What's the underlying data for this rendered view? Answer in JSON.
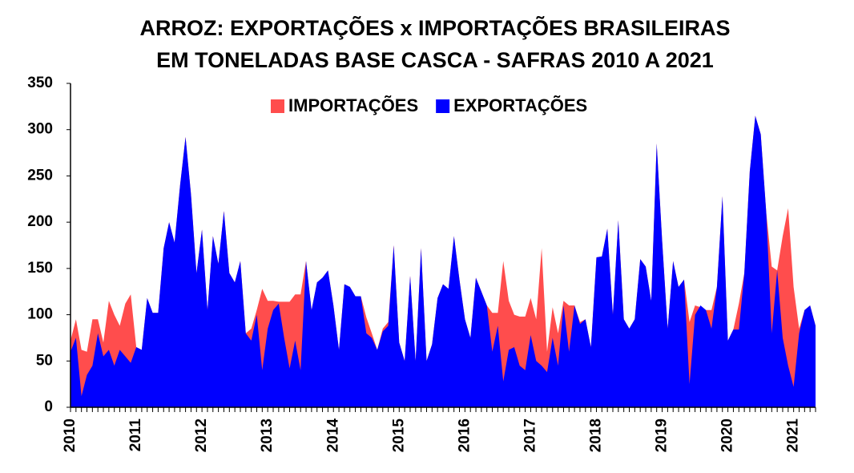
{
  "chart_data": {
    "type": "area",
    "title": [
      "ARROZ: EXPORTAÇÕES x IMPORTAÇÕES BRASILEIRAS",
      "EM TONELADAS BASE CASCA - SAFRAS 2010 A 2021"
    ],
    "categories": [
      "2010",
      null,
      null,
      null,
      null,
      null,
      null,
      null,
      null,
      null,
      null,
      null,
      "2011",
      null,
      null,
      null,
      null,
      null,
      null,
      null,
      null,
      null,
      null,
      null,
      "2012",
      null,
      null,
      null,
      null,
      null,
      null,
      null,
      null,
      null,
      null,
      null,
      "2013",
      null,
      null,
      null,
      null,
      null,
      null,
      null,
      null,
      null,
      null,
      null,
      "2014",
      null,
      null,
      null,
      null,
      null,
      null,
      null,
      null,
      null,
      null,
      null,
      "2015",
      null,
      null,
      null,
      null,
      null,
      null,
      null,
      null,
      null,
      null,
      null,
      "2016",
      null,
      null,
      null,
      null,
      null,
      null,
      null,
      null,
      null,
      null,
      null,
      "2017",
      null,
      null,
      null,
      null,
      null,
      null,
      null,
      null,
      null,
      null,
      null,
      "2018",
      null,
      null,
      null,
      null,
      null,
      null,
      null,
      null,
      null,
      null,
      null,
      "2019",
      null,
      null,
      null,
      null,
      null,
      null,
      null,
      null,
      null,
      null,
      null,
      "2020",
      null,
      null,
      null,
      null,
      null,
      null,
      null,
      null,
      null,
      null,
      null,
      "2021",
      null,
      null,
      null,
      null
    ],
    "series": [
      {
        "name": "IMPORTAÇÕES",
        "color": "#ff4d4d",
        "values": [
          72,
          95,
          62,
          60,
          95,
          95,
          70,
          115,
          100,
          88,
          112,
          122,
          65,
          62,
          118,
          102,
          102,
          172,
          200,
          178,
          240,
          292,
          230,
          145,
          192,
          105,
          185,
          155,
          212,
          145,
          135,
          158,
          80,
          85,
          105,
          128,
          115,
          115,
          114,
          114,
          114,
          122,
          122,
          158,
          105,
          135,
          140,
          148,
          110,
          62,
          133,
          130,
          120,
          120,
          97,
          80,
          62,
          85,
          92,
          175,
          70,
          50,
          142,
          50,
          172,
          50,
          68,
          118,
          133,
          128,
          185,
          138,
          95,
          75,
          140,
          125,
          110,
          102,
          102,
          158,
          115,
          100,
          98,
          98,
          118,
          95,
          172,
          60,
          108,
          80,
          115,
          110,
          110,
          92,
          95,
          65,
          162,
          163,
          193,
          100,
          202,
          95,
          85,
          95,
          160,
          152,
          115,
          285,
          180,
          85,
          158,
          130,
          138,
          92,
          110,
          108,
          105,
          105,
          130,
          228,
          72,
          84,
          112,
          145,
          255,
          315,
          295,
          210,
          152,
          148,
          185,
          215,
          130,
          85,
          105,
          110,
          88
        ]
      },
      {
        "name": "EXPORTAÇÕES",
        "color": "#0000ff",
        "values": [
          60,
          75,
          12,
          35,
          45,
          80,
          55,
          62,
          45,
          62,
          55,
          48,
          65,
          62,
          118,
          102,
          102,
          172,
          200,
          178,
          240,
          292,
          230,
          145,
          192,
          105,
          185,
          155,
          212,
          145,
          135,
          158,
          80,
          72,
          100,
          40,
          85,
          105,
          112,
          75,
          42,
          72,
          40,
          158,
          105,
          135,
          140,
          148,
          110,
          62,
          133,
          130,
          120,
          120,
          80,
          75,
          62,
          82,
          88,
          175,
          70,
          50,
          142,
          50,
          172,
          50,
          68,
          118,
          133,
          128,
          185,
          138,
          95,
          75,
          140,
          125,
          110,
          60,
          88,
          28,
          62,
          65,
          45,
          40,
          78,
          50,
          45,
          38,
          75,
          45,
          110,
          60,
          110,
          90,
          95,
          65,
          162,
          163,
          193,
          100,
          202,
          95,
          85,
          95,
          160,
          152,
          115,
          285,
          180,
          85,
          158,
          130,
          138,
          25,
          100,
          110,
          105,
          85,
          130,
          228,
          72,
          84,
          84,
          145,
          255,
          315,
          295,
          210,
          80,
          148,
          75,
          45,
          22,
          80,
          105,
          110,
          88
        ]
      }
    ],
    "ylim": [
      0,
      350
    ],
    "yticks": [
      0,
      50,
      100,
      150,
      200,
      250,
      300,
      350
    ],
    "grid": false,
    "legend": "top"
  }
}
